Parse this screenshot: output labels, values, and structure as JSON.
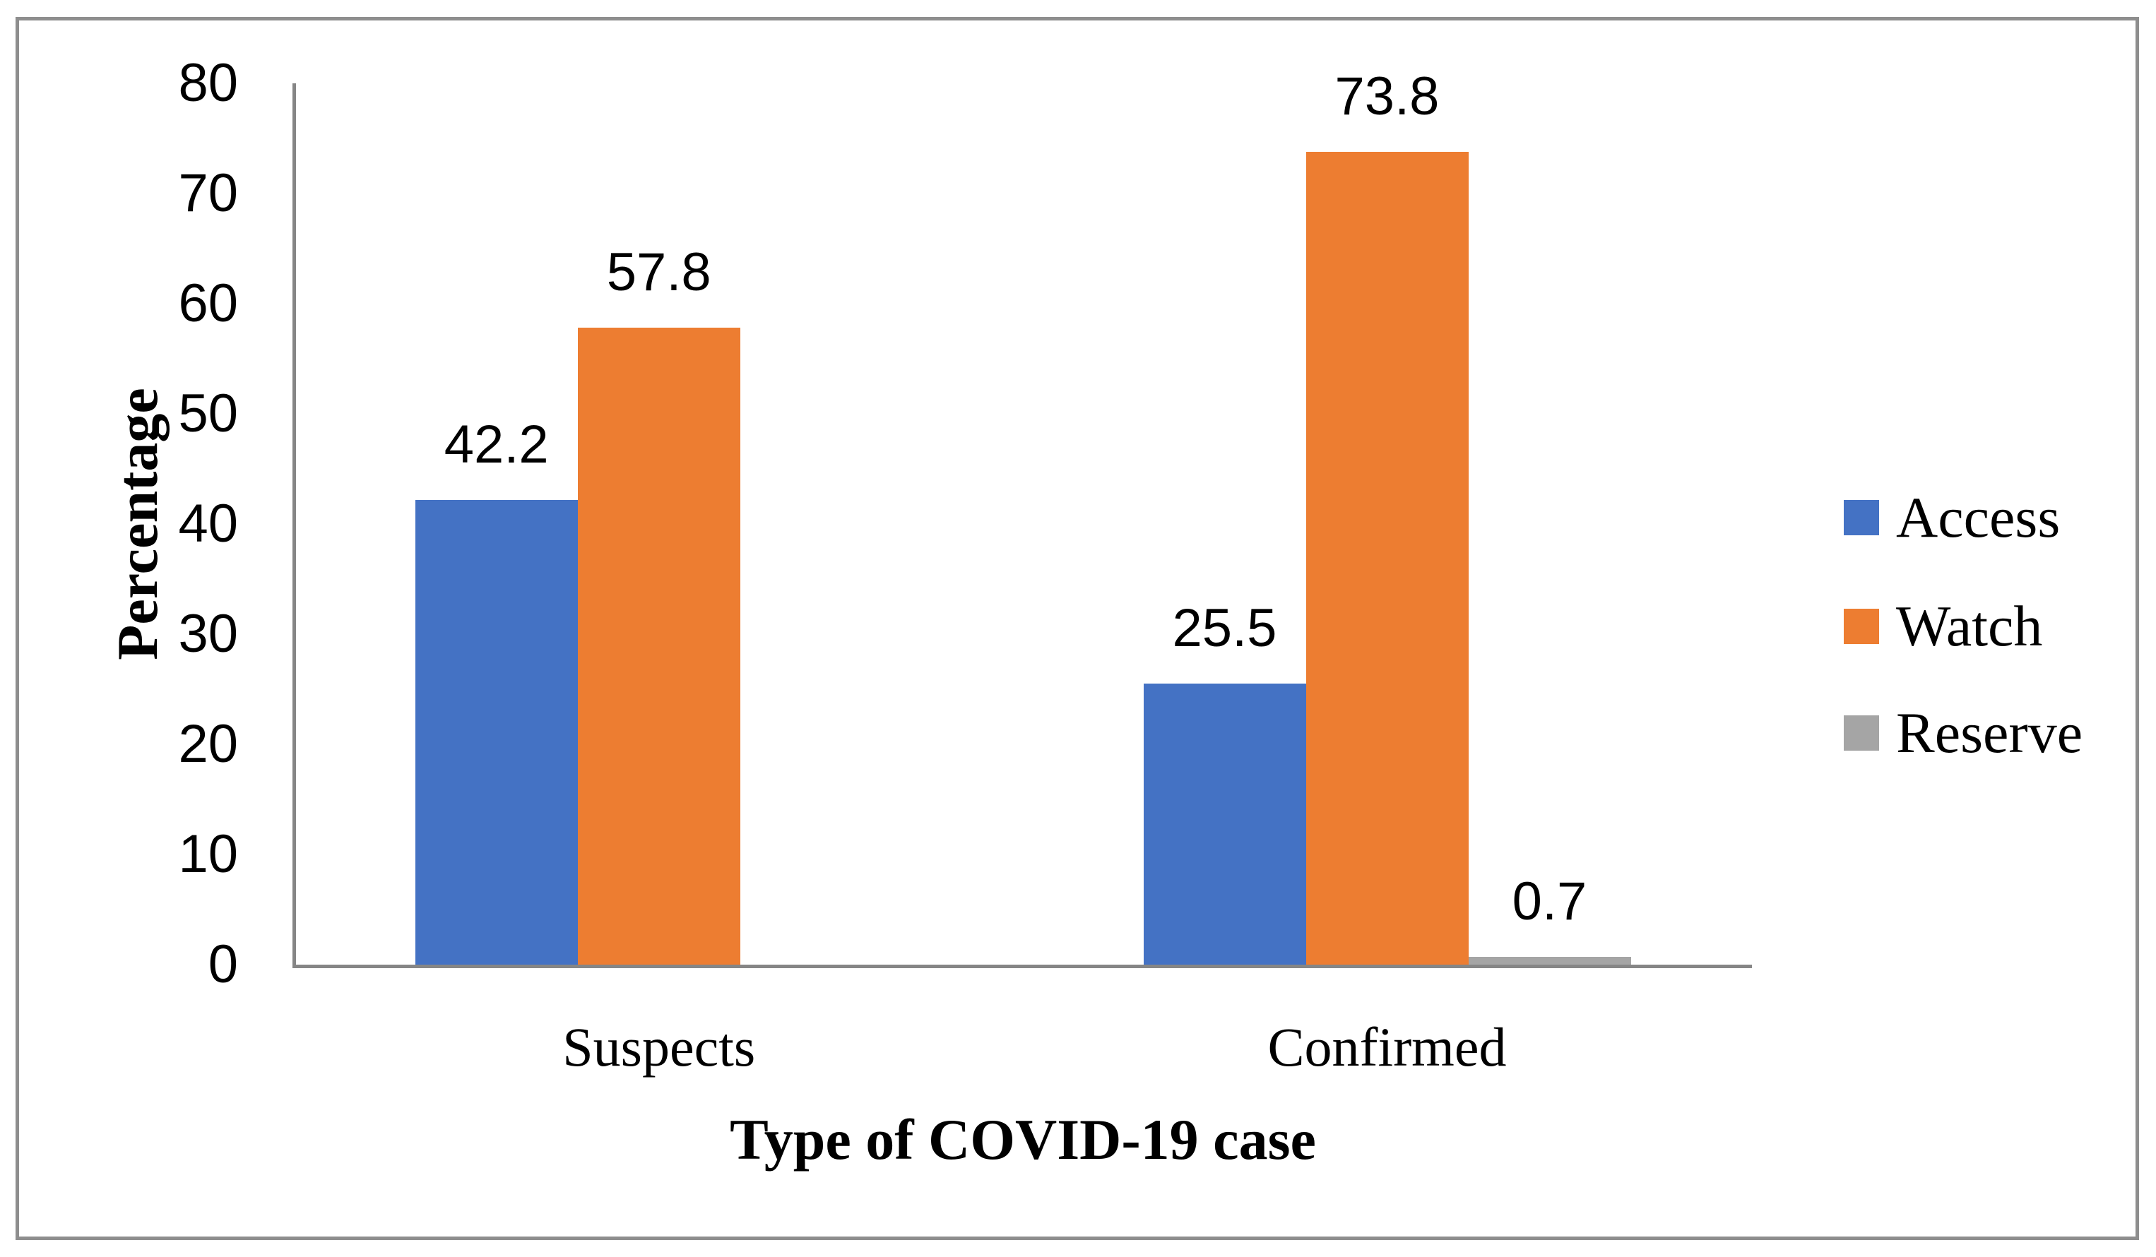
{
  "chart_data": {
    "type": "bar",
    "title": "",
    "xlabel": "Type of COVID-19 case",
    "ylabel": "Percentage",
    "categories": [
      "Suspects",
      "Confirmed"
    ],
    "series": [
      {
        "name": "Access",
        "color": "#4472C4",
        "values": [
          42.2,
          25.5
        ]
      },
      {
        "name": "Watch",
        "color": "#ED7D31",
        "values": [
          57.8,
          73.8
        ]
      },
      {
        "name": "Reserve",
        "color": "#A5A5A5",
        "values": [
          null,
          0.7
        ]
      }
    ],
    "data_labels": [
      "42.2",
      "57.8",
      "25.5",
      "73.8",
      "0.7"
    ],
    "ylim": [
      0,
      80
    ],
    "yticks": [
      0,
      10,
      20,
      30,
      40,
      50,
      60,
      70,
      80
    ],
    "grid": false,
    "legend_position": "right",
    "legend_items": [
      {
        "label": "Access",
        "color": "#4472C4"
      },
      {
        "label": "Watch",
        "color": "#ED7D31"
      },
      {
        "label": "Reserve",
        "color": "#A5A5A5"
      }
    ]
  }
}
